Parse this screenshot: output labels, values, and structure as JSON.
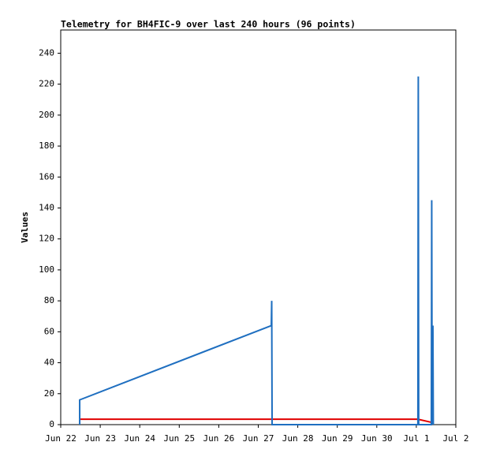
{
  "chart_data": {
    "type": "line",
    "title": "Telemetry for BH4FIC-9 over last 240 hours (96 points)",
    "y_label": "Values",
    "xlim": [
      0,
      10
    ],
    "ylim": [
      0,
      255
    ],
    "xticks": [
      {
        "value": 0,
        "label": "Jun 22"
      },
      {
        "value": 1,
        "label": "Jun 23"
      },
      {
        "value": 2,
        "label": "Jun 24"
      },
      {
        "value": 3,
        "label": "Jun 25"
      },
      {
        "value": 4,
        "label": "Jun 26"
      },
      {
        "value": 5,
        "label": "Jun 27"
      },
      {
        "value": 6,
        "label": "Jun 28"
      },
      {
        "value": 7,
        "label": "Jun 29"
      },
      {
        "value": 8,
        "label": "Jun 30"
      },
      {
        "value": 9,
        "label": "Jul 1"
      },
      {
        "value": 10,
        "label": "Jul 2"
      }
    ],
    "yticks": [
      0,
      20,
      40,
      60,
      80,
      100,
      120,
      140,
      160,
      180,
      200,
      220,
      240
    ],
    "series": [
      {
        "color": "#e00000",
        "x": [
          0.48,
          9.04,
          9.38,
          9.39,
          9.42
        ],
        "values": [
          3.5,
          3.5,
          1.5,
          6,
          0
        ]
      },
      {
        "color": "#1f6fc0",
        "x": [
          0.48,
          0.48,
          5.33,
          5.34,
          5.35,
          9.04,
          9.05,
          9.06,
          9.38,
          9.39,
          9.4,
          9.42,
          9.43
        ],
        "values": [
          0,
          16,
          64,
          80,
          0,
          0,
          225,
          0,
          0,
          145,
          0,
          64,
          0
        ]
      }
    ]
  }
}
